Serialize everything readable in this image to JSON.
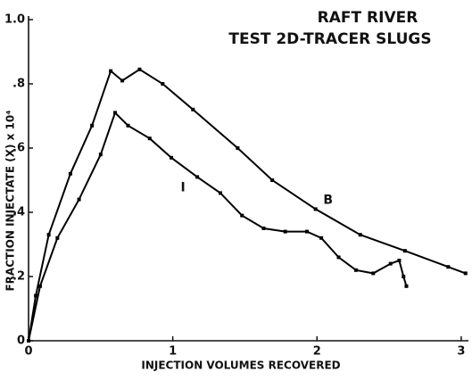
{
  "chart_data": {
    "type": "line",
    "title": "RAFT RIVER",
    "subtitle": "TEST 2D-TRACER SLUGS",
    "x_label": "INJECTION VOLUMES RECOVERED",
    "y_label": "FRACTION INJECTATE (X) x 10⁴",
    "xlim": [
      0,
      3.05
    ],
    "ylim": [
      0,
      1
    ],
    "xticks": [
      0,
      1,
      2,
      3
    ],
    "yticks": [
      0,
      {
        "value": 0.2,
        "label": ".2"
      },
      {
        "value": 0.4,
        "label": ".4"
      },
      {
        "value": 0.6,
        "label": ".6"
      },
      {
        "value": 0.8,
        "label": ".8"
      },
      {
        "value": 1,
        "label": "1.0"
      }
    ],
    "series": [
      {
        "name": "B",
        "color": "#000000",
        "x": [
          0,
          0.05,
          0.14,
          0.29,
          0.44,
          0.57,
          0.65,
          0.77,
          0.93,
          1.14,
          1.45,
          1.69,
          1.99,
          2.3,
          2.61,
          2.91,
          3.03
        ],
        "values": [
          0,
          0.14,
          0.33,
          0.52,
          0.67,
          0.84,
          0.81,
          0.845,
          0.8,
          0.72,
          0.6,
          0.5,
          0.41,
          0.33,
          0.28,
          0.23,
          0.21
        ]
      },
      {
        "name": "I",
        "color": "#000000",
        "x": [
          0,
          0.08,
          0.2,
          0.35,
          0.5,
          0.6,
          0.69,
          0.84,
          0.99,
          1.17,
          1.33,
          1.48,
          1.63,
          1.78,
          1.93,
          2.03,
          2.15,
          2.27,
          2.39,
          2.51,
          2.57,
          2.6,
          2.62
        ],
        "values": [
          0,
          0.17,
          0.32,
          0.44,
          0.58,
          0.71,
          0.67,
          0.63,
          0.57,
          0.51,
          0.46,
          0.39,
          0.35,
          0.34,
          0.34,
          0.32,
          0.26,
          0.22,
          0.21,
          0.24,
          0.25,
          0.2,
          0.17
        ]
      }
    ]
  }
}
